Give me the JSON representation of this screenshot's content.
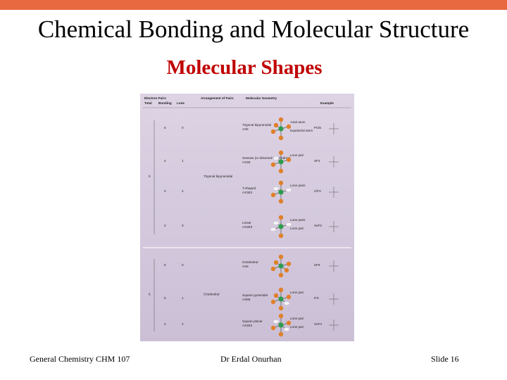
{
  "header": {
    "title": "Chemical Bonding and Molecular Structure",
    "subtitle": "Molecular Shapes"
  },
  "figure": {
    "columns": {
      "electron_pairs": "Electron Pairs",
      "total": "Total",
      "bonding": "Bonding",
      "lone": "Lone",
      "arrangement": "Arrangement of Pairs",
      "geometry": "Molecular Geometry",
      "example": "Example"
    },
    "groups": [
      {
        "total": "5",
        "arrangement": "Trigonal bipyramidal",
        "rows": [
          {
            "bonding": "5",
            "lone": "0",
            "geometry": "Trigonal bipyramidal",
            "formula": "AX5",
            "example": "PCl5",
            "notes": [
              "Axial atom",
              "Equatorial atom"
            ]
          },
          {
            "bonding": "4",
            "lone": "1",
            "geometry": "Seesaw (or distorted tetrahedron)",
            "formula": "AX4E",
            "example": "SF4",
            "notes": [
              "Lone pair"
            ]
          },
          {
            "bonding": "3",
            "lone": "2",
            "geometry": "T-shaped",
            "formula": "AX3E2",
            "example": "ClF3",
            "notes": [
              "Lone pairs"
            ]
          },
          {
            "bonding": "2",
            "lone": "3",
            "geometry": "Linear",
            "formula": "AX2E3",
            "example": "XeF2",
            "notes": [
              "Lone pairs",
              "Lone pair"
            ]
          }
        ]
      },
      {
        "total": "6",
        "arrangement": "Octahedral",
        "rows": [
          {
            "bonding": "6",
            "lone": "0",
            "geometry": "Octahedral",
            "formula": "AX6",
            "example": "SF6",
            "notes": []
          },
          {
            "bonding": "5",
            "lone": "1",
            "geometry": "Square pyramidal",
            "formula": "AX5E",
            "example": "IF5",
            "notes": [
              "Lone pair"
            ]
          },
          {
            "bonding": "4",
            "lone": "2",
            "geometry": "Square planar",
            "formula": "AX4E2",
            "example": "XeF4",
            "notes": [
              "Lone pair",
              "Lone pair"
            ]
          }
        ]
      }
    ]
  },
  "footer": {
    "course": "General Chemistry CHM 107",
    "author": "Dr Erdal Onurhan",
    "slide": "Slide 16"
  }
}
